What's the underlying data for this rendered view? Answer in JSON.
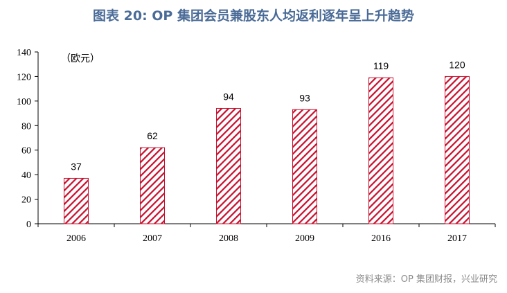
{
  "title": "图表 20: OP 集团会员兼股东人均返利逐年呈上升趋势",
  "source": "资料来源：OP 集团财报，兴业研究",
  "chart_data": {
    "type": "bar",
    "title": "图表 20: OP 集团会员兼股东人均返利逐年呈上升趋势",
    "unit_label": "（欧元）",
    "categories": [
      "2006",
      "2007",
      "2008",
      "2009",
      "2016",
      "2017"
    ],
    "values": [
      37,
      62,
      94,
      93,
      119,
      120
    ],
    "data_labels": [
      "37",
      "62",
      "94",
      "93",
      "119",
      "120"
    ],
    "ylim": [
      0,
      140
    ],
    "yticks": [
      0,
      20,
      40,
      60,
      80,
      100,
      120,
      140
    ],
    "grid": false,
    "bar_color": "#c8102e",
    "bar_pattern": "diagonal-hatch"
  }
}
